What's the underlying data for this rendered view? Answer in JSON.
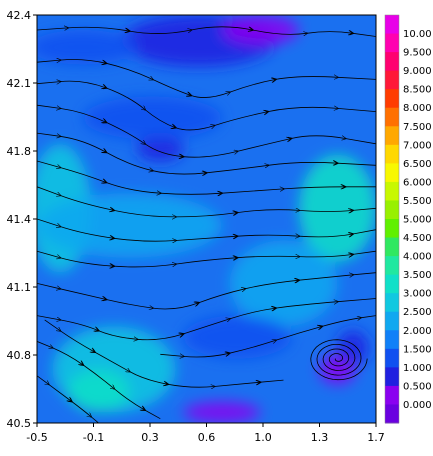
{
  "chart_data": {
    "type": "heatmap",
    "title": "",
    "xlabel": "",
    "ylabel": "",
    "overlay": "streamlines",
    "xlim": [
      -0.5,
      1.7
    ],
    "ylim": [
      40.5,
      42.4
    ],
    "x_ticks": [
      "-0.5",
      "-0.1",
      "0.3",
      "0.6",
      "1.0",
      "1.3",
      "1.7"
    ],
    "y_ticks": [
      "42.4",
      "42.1",
      "41.8",
      "41.4",
      "41.1",
      "40.8",
      "40.5"
    ],
    "colorbar": {
      "position": "right",
      "labels": [
        "10.00",
        "9.500",
        "9.000",
        "8.500",
        "8.000",
        "7.500",
        "7.000",
        "6.500",
        "6.000",
        "5.500",
        "5.000",
        "4.500",
        "4.000",
        "3.500",
        "3.000",
        "2.500",
        "2.000",
        "1.500",
        "1.000",
        "0.500",
        "0.000"
      ],
      "colors": [
        "#e800e8",
        "#ff00b0",
        "#ff0070",
        "#ff1838",
        "#ff3c00",
        "#ff7000",
        "#ffa800",
        "#ffd800",
        "#f8f800",
        "#c8f800",
        "#98f000",
        "#60f000",
        "#30e860",
        "#20e8a0",
        "#10e0c8",
        "#10c8e0",
        "#10a8f0",
        "#1080f8",
        "#1050f0",
        "#2020e0",
        "#8a00f0",
        "#6a00e0"
      ]
    },
    "blobs": [
      {
        "cx": 0.55,
        "cy": 42.28,
        "rx": 0.5,
        "ry": 0.12,
        "level": 0.6
      },
      {
        "cx": 0.95,
        "cy": 42.33,
        "rx": 0.25,
        "ry": 0.07,
        "level": 0.2
      },
      {
        "cx": -0.2,
        "cy": 42.25,
        "rx": 0.35,
        "ry": 0.08,
        "level": 1.2
      },
      {
        "cx": 0.3,
        "cy": 41.78,
        "rx": 0.15,
        "ry": 0.06,
        "level": 0.3
      },
      {
        "cx": 0.25,
        "cy": 41.92,
        "rx": 0.45,
        "ry": 0.1,
        "level": 0.9
      },
      {
        "cx": -0.35,
        "cy": 41.5,
        "rx": 0.2,
        "ry": 0.3,
        "level": 2.6
      },
      {
        "cx": 0.1,
        "cy": 41.42,
        "rx": 0.6,
        "ry": 0.15,
        "level": 2.2
      },
      {
        "cx": 1.45,
        "cy": 41.5,
        "rx": 0.25,
        "ry": 0.25,
        "level": 2.8
      },
      {
        "cx": 1.1,
        "cy": 41.15,
        "rx": 0.35,
        "ry": 0.2,
        "level": 1.8
      },
      {
        "cx": 0.0,
        "cy": 40.75,
        "rx": 0.4,
        "ry": 0.2,
        "level": 2.4
      },
      {
        "cx": -0.1,
        "cy": 40.65,
        "rx": 0.2,
        "ry": 0.1,
        "level": 3.2
      },
      {
        "cx": 0.7,
        "cy": 40.55,
        "rx": 0.25,
        "ry": 0.05,
        "level": 0.2
      },
      {
        "cx": 1.45,
        "cy": 40.75,
        "rx": 0.12,
        "ry": 0.07,
        "level": 0.2
      },
      {
        "cx": 1.55,
        "cy": 40.85,
        "rx": 0.1,
        "ry": 0.08,
        "level": 0.3
      },
      {
        "cx": 0.8,
        "cy": 40.9,
        "rx": 0.35,
        "ry": 0.1,
        "level": 1.2
      }
    ],
    "streamlines": [
      {
        "points": [
          [
            -0.5,
            42.33
          ],
          [
            -0.1,
            42.35
          ],
          [
            0.3,
            42.3
          ],
          [
            0.7,
            42.36
          ],
          [
            1.1,
            42.3
          ],
          [
            1.4,
            42.33
          ],
          [
            1.7,
            42.3
          ]
        ]
      },
      {
        "points": [
          [
            -0.5,
            42.18
          ],
          [
            -0.2,
            42.2
          ],
          [
            0.1,
            42.15
          ],
          [
            0.4,
            42.05
          ],
          [
            0.6,
            42.0
          ],
          [
            0.9,
            42.08
          ],
          [
            1.2,
            42.12
          ],
          [
            1.7,
            42.1
          ]
        ]
      },
      {
        "points": [
          [
            -0.5,
            42.08
          ],
          [
            -0.2,
            42.1
          ],
          [
            0.1,
            42.02
          ],
          [
            0.3,
            41.9
          ],
          [
            0.5,
            41.85
          ],
          [
            0.8,
            41.92
          ],
          [
            1.2,
            41.98
          ],
          [
            1.7,
            41.95
          ]
        ]
      },
      {
        "points": [
          [
            -0.5,
            41.98
          ],
          [
            -0.2,
            41.95
          ],
          [
            0.1,
            41.85
          ],
          [
            0.3,
            41.75
          ],
          [
            0.6,
            41.73
          ],
          [
            1.0,
            41.8
          ],
          [
            1.3,
            41.85
          ],
          [
            1.7,
            41.8
          ]
        ]
      },
      {
        "points": [
          [
            -0.5,
            41.85
          ],
          [
            -0.2,
            41.82
          ],
          [
            0.1,
            41.7
          ],
          [
            0.4,
            41.65
          ],
          [
            0.8,
            41.68
          ],
          [
            1.2,
            41.72
          ],
          [
            1.7,
            41.7
          ]
        ]
      },
      {
        "points": [
          [
            -0.5,
            41.72
          ],
          [
            -0.2,
            41.66
          ],
          [
            0.1,
            41.58
          ],
          [
            0.5,
            41.56
          ],
          [
            0.9,
            41.58
          ],
          [
            1.3,
            41.6
          ],
          [
            1.7,
            41.6
          ]
        ]
      },
      {
        "points": [
          [
            -0.5,
            41.6
          ],
          [
            -0.2,
            41.52
          ],
          [
            0.2,
            41.46
          ],
          [
            0.6,
            41.46
          ],
          [
            1.0,
            41.5
          ],
          [
            1.4,
            41.48
          ],
          [
            1.7,
            41.5
          ]
        ]
      },
      {
        "points": [
          [
            -0.5,
            41.45
          ],
          [
            -0.2,
            41.38
          ],
          [
            0.2,
            41.34
          ],
          [
            0.6,
            41.36
          ],
          [
            1.0,
            41.38
          ],
          [
            1.4,
            41.36
          ],
          [
            1.7,
            41.4
          ]
        ]
      },
      {
        "points": [
          [
            -0.5,
            41.3
          ],
          [
            -0.2,
            41.24
          ],
          [
            0.2,
            41.22
          ],
          [
            0.6,
            41.26
          ],
          [
            1.0,
            41.28
          ],
          [
            1.4,
            41.27
          ],
          [
            1.7,
            41.3
          ]
        ]
      },
      {
        "points": [
          [
            -0.5,
            41.15
          ],
          [
            -0.2,
            41.1
          ],
          [
            0.1,
            41.05
          ],
          [
            0.4,
            41.02
          ],
          [
            0.7,
            41.1
          ],
          [
            1.0,
            41.15
          ],
          [
            1.4,
            41.18
          ],
          [
            1.7,
            41.2
          ]
        ]
      },
      {
        "points": [
          [
            -0.5,
            41.0
          ],
          [
            -0.2,
            40.96
          ],
          [
            0.0,
            40.9
          ],
          [
            0.3,
            40.88
          ],
          [
            0.6,
            40.95
          ],
          [
            0.9,
            41.02
          ],
          [
            1.2,
            41.05
          ],
          [
            1.7,
            41.08
          ]
        ]
      },
      {
        "points": [
          [
            -0.5,
            40.88
          ],
          [
            -0.3,
            40.82
          ],
          [
            -0.1,
            40.72
          ],
          [
            0.1,
            40.6
          ],
          [
            0.3,
            40.52
          ]
        ]
      },
      {
        "points": [
          [
            -0.45,
            40.98
          ],
          [
            -0.25,
            40.88
          ],
          [
            0.0,
            40.78
          ],
          [
            0.2,
            40.7
          ],
          [
            0.5,
            40.66
          ],
          [
            0.8,
            40.68
          ],
          [
            1.1,
            40.7
          ]
        ]
      },
      {
        "points": [
          [
            -0.5,
            40.72
          ],
          [
            -0.35,
            40.64
          ],
          [
            -0.2,
            40.56
          ],
          [
            -0.1,
            40.5
          ]
        ]
      },
      {
        "points": [
          [
            0.3,
            40.82
          ],
          [
            0.6,
            40.8
          ],
          [
            0.9,
            40.85
          ],
          [
            1.2,
            40.92
          ],
          [
            1.5,
            40.98
          ],
          [
            1.7,
            41.0
          ]
        ]
      }
    ],
    "vortex": {
      "cx": 1.45,
      "cy": 40.8,
      "r": 0.18
    }
  }
}
